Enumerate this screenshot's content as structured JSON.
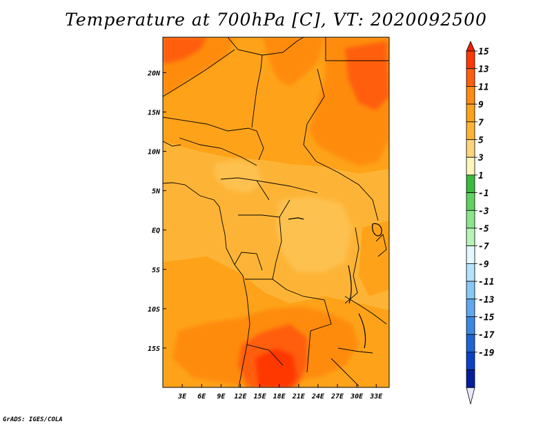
{
  "title": "Temperature at 700hPa [C], VT: 2020092500",
  "credit": "GrADS: IGES/COLA",
  "map": {
    "lon_range": [
      0,
      35
    ],
    "lat_range": [
      -20,
      24.5
    ],
    "x_ticks": [
      {
        "lon": 3,
        "label": "3E"
      },
      {
        "lon": 6,
        "label": "6E"
      },
      {
        "lon": 9,
        "label": "9E"
      },
      {
        "lon": 12,
        "label": "12E"
      },
      {
        "lon": 15,
        "label": "15E"
      },
      {
        "lon": 18,
        "label": "18E"
      },
      {
        "lon": 21,
        "label": "21E"
      },
      {
        "lon": 24,
        "label": "24E"
      },
      {
        "lon": 27,
        "label": "27E"
      },
      {
        "lon": 30,
        "label": "30E"
      },
      {
        "lon": 33,
        "label": "33E"
      }
    ],
    "y_ticks": [
      {
        "lat": 20,
        "label": "20N"
      },
      {
        "lat": 15,
        "label": "15N"
      },
      {
        "lat": 10,
        "label": "10N"
      },
      {
        "lat": 5,
        "label": "5N"
      },
      {
        "lat": 0,
        "label": "EQ"
      },
      {
        "lat": -5,
        "label": "5S"
      },
      {
        "lat": -10,
        "label": "10S"
      },
      {
        "lat": -15,
        "label": "15S"
      }
    ],
    "background_color": "#fdb436"
  },
  "colorbar": {
    "labels": [
      "15",
      "13",
      "11",
      "9",
      "7",
      "5",
      "3",
      "1",
      "-1",
      "-3",
      "-5",
      "-7",
      "-9",
      "-11",
      "-13",
      "-15",
      "-17",
      "-19"
    ],
    "colors": [
      "#ff3806",
      "#ff5f0c",
      "#ff8b10",
      "#fea319",
      "#fdb436",
      "#fdd37d",
      "#fef5ba",
      "#3cba3c",
      "#5ed35e",
      "#8be58b",
      "#b7f3b7",
      "#e3f8ff",
      "#b4e1fb",
      "#86c7f5",
      "#5fa8ee",
      "#3a88e3",
      "#1e64d4",
      "#0a42c6",
      "#051e9c",
      "#ffffff"
    ],
    "top_color": "#ea2202",
    "bottom_color": "#e7e7ff"
  }
}
